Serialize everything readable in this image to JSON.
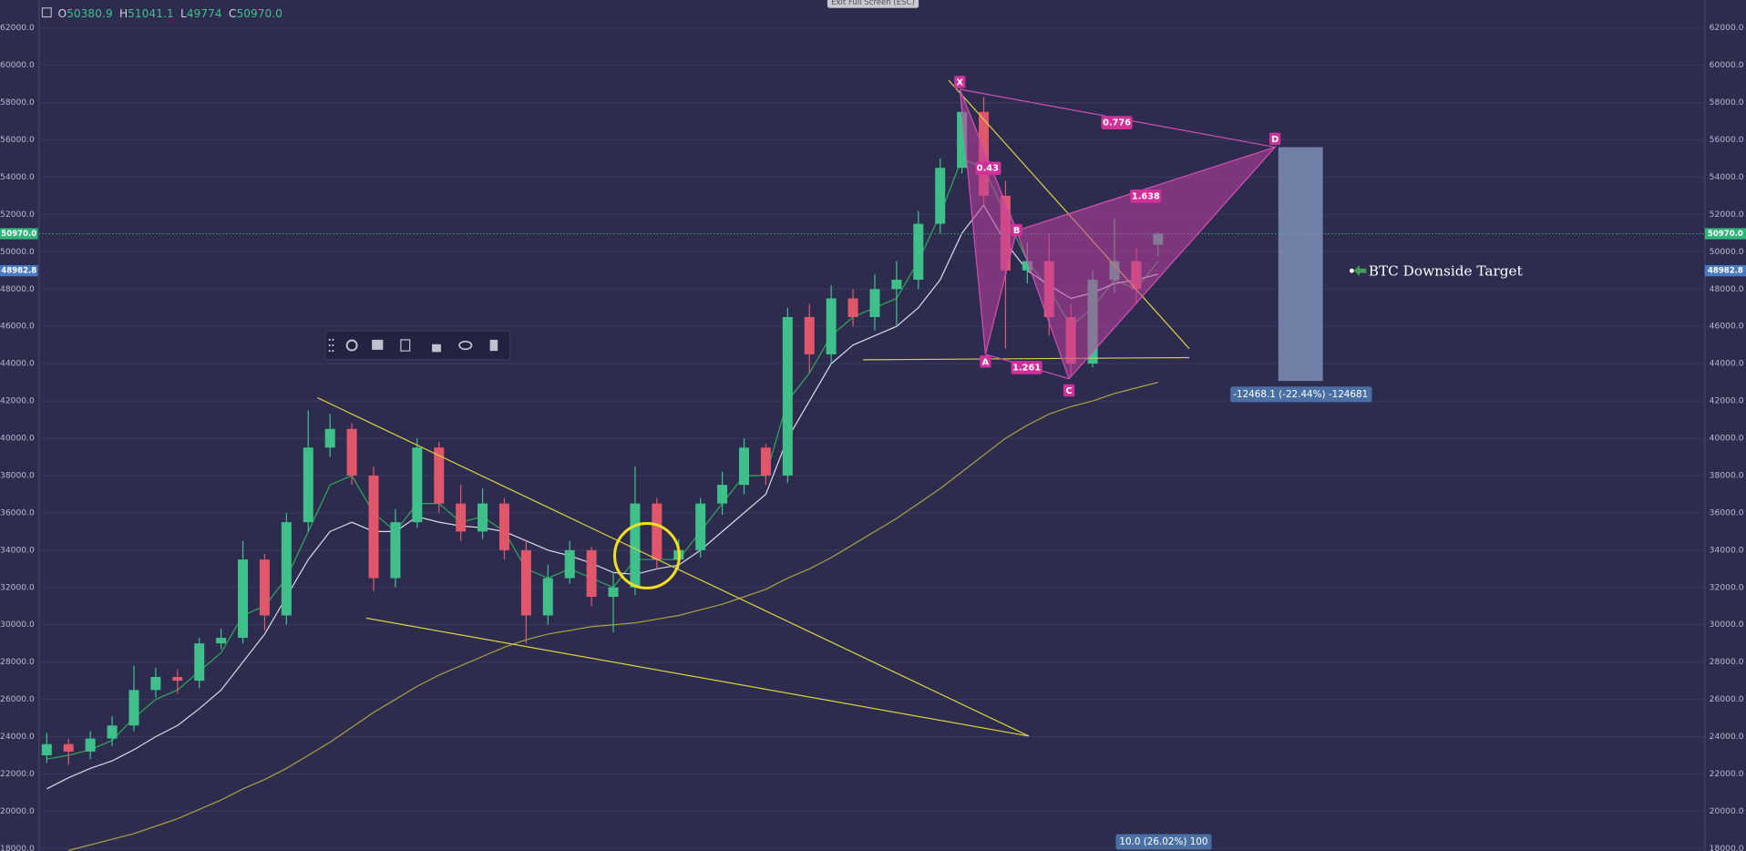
{
  "chart_data": {
    "type": "candlestick",
    "legend": {
      "labels": [
        "O",
        "H",
        "L",
        "C"
      ],
      "values": [
        50380.9,
        51041.1,
        49774,
        {
          "value": 50970,
          "label": "50970.0"
        }
      ]
    },
    "exit_button": "Exit Full Screen (ESC)",
    "ylim": [
      17880,
      63490
    ],
    "yticks": [
      {
        "value": 18000,
        "label": "18000.0"
      },
      {
        "value": 20000,
        "label": "20000.0"
      },
      {
        "value": 22000,
        "label": "22000.0"
      },
      {
        "value": 24000,
        "label": "24000.0"
      },
      {
        "value": 26000,
        "label": "26000.0"
      },
      {
        "value": 28000,
        "label": "28000.0"
      },
      {
        "value": 30000,
        "label": "30000.0"
      },
      {
        "value": 32000,
        "label": "32000.0"
      },
      {
        "value": 34000,
        "label": "34000.0"
      },
      {
        "value": 36000,
        "label": "36000.0"
      },
      {
        "value": 38000,
        "label": "38000.0"
      },
      {
        "value": 40000,
        "label": "40000.0"
      },
      {
        "value": 42000,
        "label": "42000.0"
      },
      {
        "value": 44000,
        "label": "44000.0"
      },
      {
        "value": 46000,
        "label": "46000.0"
      },
      {
        "value": 48000,
        "label": "48000.0"
      },
      {
        "value": 50000,
        "label": "50000.0"
      },
      {
        "value": 52000,
        "label": "52000.0"
      },
      {
        "value": 54000,
        "label": "54000.0"
      },
      {
        "value": 56000,
        "label": "56000.0"
      },
      {
        "value": 58000,
        "label": "58000.0"
      },
      {
        "value": 60000,
        "label": "60000.0"
      },
      {
        "value": 62000,
        "label": "62000.0"
      }
    ],
    "grid": true,
    "up_color": "#3fc08a",
    "down_color": "#e0566a",
    "open": [
      23000,
      23600,
      23200,
      23900,
      24600,
      26500,
      27200,
      27000,
      29000,
      29300,
      33500,
      30500,
      35500,
      39500,
      40500,
      38000,
      32500,
      35500,
      39500,
      36500,
      35000,
      36500,
      34000,
      30500,
      32500,
      34000,
      31500,
      32000,
      36500,
      33500,
      34000,
      36500,
      37500,
      39500,
      38000,
      46500,
      44500,
      47500,
      46500,
      48000,
      48500,
      51500,
      54500,
      57500,
      53000,
      49000,
      49500,
      46500,
      44000,
      48500,
      49500,
      50380.9
    ],
    "high": [
      24200,
      23900,
      24300,
      25100,
      27800,
      27700,
      27600,
      29300,
      29800,
      34500,
      33800,
      36000,
      41500,
      41300,
      40800,
      38500,
      36200,
      40000,
      39800,
      37500,
      37300,
      36800,
      34500,
      33200,
      34500,
      34200,
      32800,
      38500,
      36800,
      34600,
      36800,
      38200,
      40000,
      39700,
      47000,
      47200,
      48200,
      48000,
      48800,
      49500,
      52200,
      55000,
      58000,
      58300,
      53800,
      50500,
      51000,
      47200,
      49000,
      51800,
      50200,
      51041.1
    ],
    "low": [
      22600,
      22500,
      22800,
      23500,
      24300,
      26100,
      26300,
      26600,
      28700,
      29000,
      29700,
      30000,
      35000,
      39000,
      37500,
      31800,
      32000,
      35200,
      36000,
      34500,
      34600,
      33500,
      29000,
      30000,
      32200,
      31000,
      29600,
      31600,
      33000,
      33000,
      33600,
      35900,
      37000,
      37500,
      37600,
      43500,
      44000,
      46000,
      45800,
      46000,
      48000,
      51000,
      54200,
      52500,
      44800,
      48300,
      45500,
      43300,
      43800,
      47800,
      47200,
      49774
    ],
    "close": [
      23600,
      23200,
      23900,
      24600,
      26500,
      27200,
      27000,
      29000,
      29300,
      33500,
      30500,
      35500,
      39500,
      40500,
      38000,
      32500,
      35500,
      39500,
      36500,
      35000,
      36500,
      34000,
      30500,
      32500,
      34000,
      31500,
      32000,
      36500,
      33500,
      34000,
      36500,
      37500,
      39500,
      38000,
      46500,
      44500,
      47500,
      46500,
      48000,
      48500,
      51500,
      54500,
      57500,
      53000,
      49000,
      49500,
      46500,
      44000,
      48500,
      49500,
      48000,
      50970
    ],
    "overlays": [
      {
        "color": "#2fa85a",
        "values": [
          22800,
          23000,
          23300,
          23800,
          25000,
          26000,
          26500,
          27500,
          28500,
          30500,
          31000,
          32500,
          35000,
          37500,
          38000,
          36000,
          35000,
          36500,
          36500,
          35500,
          35800,
          35000,
          33000,
          32500,
          33000,
          32500,
          32000,
          33500,
          33500,
          33500,
          35000,
          36500,
          38000,
          38000,
          42000,
          43500,
          45500,
          46500,
          47000,
          47500,
          49500,
          52000,
          55000,
          54500,
          52000,
          49500,
          48000,
          46000,
          47000,
          48500,
          48000,
          49500
        ]
      },
      {
        "color": "#d8d8e8",
        "values": [
          21200,
          21800,
          22300,
          22700,
          23300,
          24000,
          24600,
          25500,
          26500,
          28000,
          29500,
          31500,
          33500,
          35000,
          35500,
          35000,
          35000,
          35800,
          35500,
          35300,
          35200,
          35000,
          34500,
          34000,
          33700,
          33300,
          32800,
          32700,
          33000,
          33200,
          34000,
          35000,
          36000,
          37000,
          40000,
          42000,
          44000,
          45000,
          45500,
          46000,
          47000,
          48500,
          51000,
          52500,
          50500,
          49000,
          48200,
          47500,
          47800,
          48300,
          48500,
          48800
        ]
      },
      {
        "color": "#a8a040",
        "values": [
          null,
          17900,
          18200,
          18500,
          18800,
          19200,
          19600,
          20100,
          20600,
          21200,
          21700,
          22300,
          23000,
          23700,
          24500,
          25300,
          26000,
          26700,
          27300,
          27800,
          28300,
          28800,
          29200,
          29500,
          29700,
          29900,
          30000,
          30100,
          30300,
          30500,
          30800,
          31100,
          31500,
          31900,
          32500,
          33000,
          33600,
          34300,
          35000,
          35700,
          36500,
          37300,
          38200,
          39100,
          40000,
          40700,
          41300,
          41700,
          42000,
          42400,
          42700,
          43000
        ]
      }
    ],
    "price_lines": [
      {
        "value": 50970,
        "label": "50970.0",
        "color": "#2fb57a"
      },
      {
        "value": 48982.8,
        "label": "48982.8",
        "color": "#4a7bc0"
      }
    ],
    "annotations": {
      "pattern_points": [
        "X",
        "A",
        "B",
        "C",
        "D"
      ],
      "ratios": [
        0.776,
        0.43,
        1.638,
        1.261
      ],
      "target_label": "BTC Downside Target",
      "measure_labels": [
        "-12468.1 (-22.44%) -124681",
        "10.0 (26.02%) 100"
      ]
    }
  }
}
